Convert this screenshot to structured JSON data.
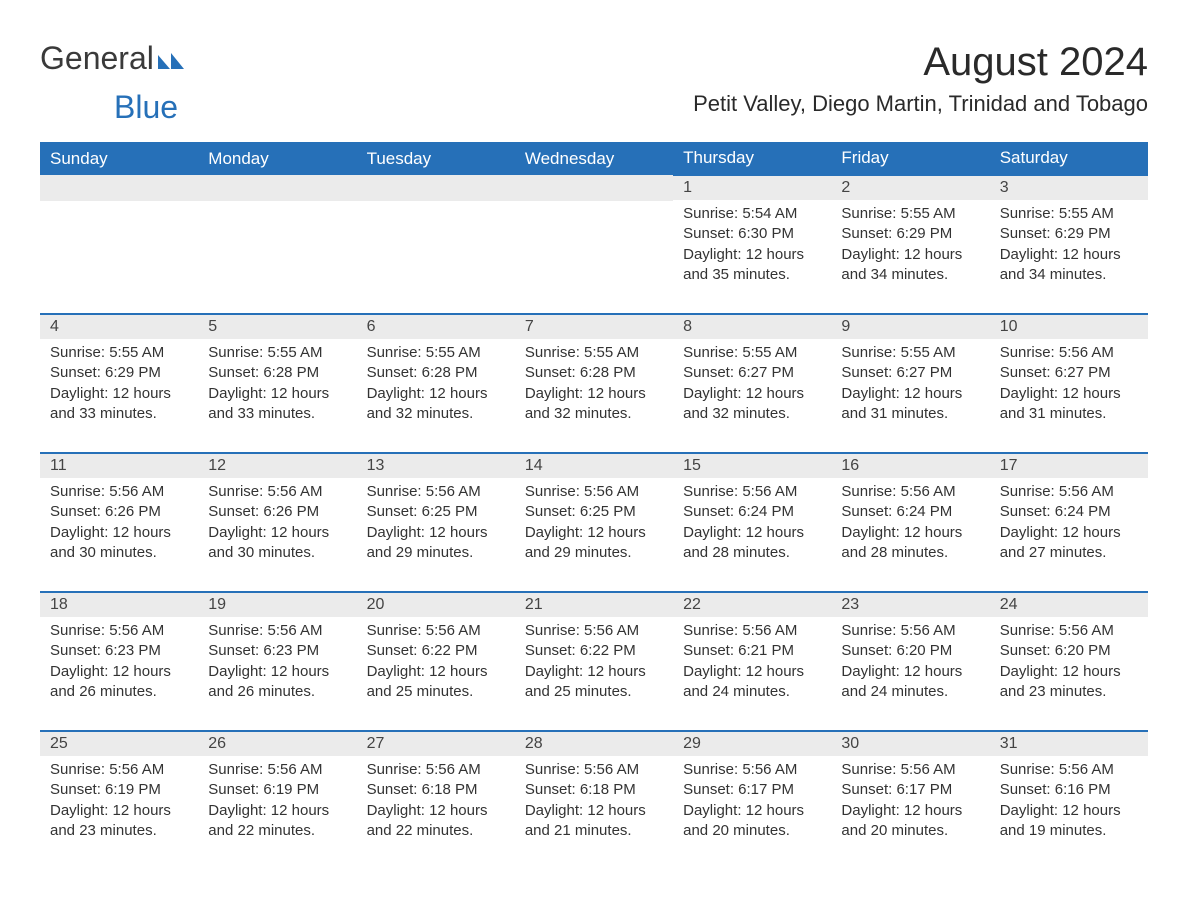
{
  "logo": {
    "text_general": "General",
    "text_blue": "Blue",
    "icon_color": "#2670b8"
  },
  "header": {
    "month_title": "August 2024",
    "location": "Petit Valley, Diego Martin, Trinidad and Tobago"
  },
  "colors": {
    "header_bg": "#2670b8",
    "header_text": "#ffffff",
    "day_bg": "#ebebeb",
    "border": "#2670b8",
    "text": "#333333"
  },
  "weekdays": [
    "Sunday",
    "Monday",
    "Tuesday",
    "Wednesday",
    "Thursday",
    "Friday",
    "Saturday"
  ],
  "weeks": [
    [
      {
        "empty": true
      },
      {
        "empty": true
      },
      {
        "empty": true
      },
      {
        "empty": true
      },
      {
        "day": "1",
        "sunrise": "Sunrise: 5:54 AM",
        "sunset": "Sunset: 6:30 PM",
        "daylight": "Daylight: 12 hours and 35 minutes."
      },
      {
        "day": "2",
        "sunrise": "Sunrise: 5:55 AM",
        "sunset": "Sunset: 6:29 PM",
        "daylight": "Daylight: 12 hours and 34 minutes."
      },
      {
        "day": "3",
        "sunrise": "Sunrise: 5:55 AM",
        "sunset": "Sunset: 6:29 PM",
        "daylight": "Daylight: 12 hours and 34 minutes."
      }
    ],
    [
      {
        "day": "4",
        "sunrise": "Sunrise: 5:55 AM",
        "sunset": "Sunset: 6:29 PM",
        "daylight": "Daylight: 12 hours and 33 minutes."
      },
      {
        "day": "5",
        "sunrise": "Sunrise: 5:55 AM",
        "sunset": "Sunset: 6:28 PM",
        "daylight": "Daylight: 12 hours and 33 minutes."
      },
      {
        "day": "6",
        "sunrise": "Sunrise: 5:55 AM",
        "sunset": "Sunset: 6:28 PM",
        "daylight": "Daylight: 12 hours and 32 minutes."
      },
      {
        "day": "7",
        "sunrise": "Sunrise: 5:55 AM",
        "sunset": "Sunset: 6:28 PM",
        "daylight": "Daylight: 12 hours and 32 minutes."
      },
      {
        "day": "8",
        "sunrise": "Sunrise: 5:55 AM",
        "sunset": "Sunset: 6:27 PM",
        "daylight": "Daylight: 12 hours and 32 minutes."
      },
      {
        "day": "9",
        "sunrise": "Sunrise: 5:55 AM",
        "sunset": "Sunset: 6:27 PM",
        "daylight": "Daylight: 12 hours and 31 minutes."
      },
      {
        "day": "10",
        "sunrise": "Sunrise: 5:56 AM",
        "sunset": "Sunset: 6:27 PM",
        "daylight": "Daylight: 12 hours and 31 minutes."
      }
    ],
    [
      {
        "day": "11",
        "sunrise": "Sunrise: 5:56 AM",
        "sunset": "Sunset: 6:26 PM",
        "daylight": "Daylight: 12 hours and 30 minutes."
      },
      {
        "day": "12",
        "sunrise": "Sunrise: 5:56 AM",
        "sunset": "Sunset: 6:26 PM",
        "daylight": "Daylight: 12 hours and 30 minutes."
      },
      {
        "day": "13",
        "sunrise": "Sunrise: 5:56 AM",
        "sunset": "Sunset: 6:25 PM",
        "daylight": "Daylight: 12 hours and 29 minutes."
      },
      {
        "day": "14",
        "sunrise": "Sunrise: 5:56 AM",
        "sunset": "Sunset: 6:25 PM",
        "daylight": "Daylight: 12 hours and 29 minutes."
      },
      {
        "day": "15",
        "sunrise": "Sunrise: 5:56 AM",
        "sunset": "Sunset: 6:24 PM",
        "daylight": "Daylight: 12 hours and 28 minutes."
      },
      {
        "day": "16",
        "sunrise": "Sunrise: 5:56 AM",
        "sunset": "Sunset: 6:24 PM",
        "daylight": "Daylight: 12 hours and 28 minutes."
      },
      {
        "day": "17",
        "sunrise": "Sunrise: 5:56 AM",
        "sunset": "Sunset: 6:24 PM",
        "daylight": "Daylight: 12 hours and 27 minutes."
      }
    ],
    [
      {
        "day": "18",
        "sunrise": "Sunrise: 5:56 AM",
        "sunset": "Sunset: 6:23 PM",
        "daylight": "Daylight: 12 hours and 26 minutes."
      },
      {
        "day": "19",
        "sunrise": "Sunrise: 5:56 AM",
        "sunset": "Sunset: 6:23 PM",
        "daylight": "Daylight: 12 hours and 26 minutes."
      },
      {
        "day": "20",
        "sunrise": "Sunrise: 5:56 AM",
        "sunset": "Sunset: 6:22 PM",
        "daylight": "Daylight: 12 hours and 25 minutes."
      },
      {
        "day": "21",
        "sunrise": "Sunrise: 5:56 AM",
        "sunset": "Sunset: 6:22 PM",
        "daylight": "Daylight: 12 hours and 25 minutes."
      },
      {
        "day": "22",
        "sunrise": "Sunrise: 5:56 AM",
        "sunset": "Sunset: 6:21 PM",
        "daylight": "Daylight: 12 hours and 24 minutes."
      },
      {
        "day": "23",
        "sunrise": "Sunrise: 5:56 AM",
        "sunset": "Sunset: 6:20 PM",
        "daylight": "Daylight: 12 hours and 24 minutes."
      },
      {
        "day": "24",
        "sunrise": "Sunrise: 5:56 AM",
        "sunset": "Sunset: 6:20 PM",
        "daylight": "Daylight: 12 hours and 23 minutes."
      }
    ],
    [
      {
        "day": "25",
        "sunrise": "Sunrise: 5:56 AM",
        "sunset": "Sunset: 6:19 PM",
        "daylight": "Daylight: 12 hours and 23 minutes."
      },
      {
        "day": "26",
        "sunrise": "Sunrise: 5:56 AM",
        "sunset": "Sunset: 6:19 PM",
        "daylight": "Daylight: 12 hours and 22 minutes."
      },
      {
        "day": "27",
        "sunrise": "Sunrise: 5:56 AM",
        "sunset": "Sunset: 6:18 PM",
        "daylight": "Daylight: 12 hours and 22 minutes."
      },
      {
        "day": "28",
        "sunrise": "Sunrise: 5:56 AM",
        "sunset": "Sunset: 6:18 PM",
        "daylight": "Daylight: 12 hours and 21 minutes."
      },
      {
        "day": "29",
        "sunrise": "Sunrise: 5:56 AM",
        "sunset": "Sunset: 6:17 PM",
        "daylight": "Daylight: 12 hours and 20 minutes."
      },
      {
        "day": "30",
        "sunrise": "Sunrise: 5:56 AM",
        "sunset": "Sunset: 6:17 PM",
        "daylight": "Daylight: 12 hours and 20 minutes."
      },
      {
        "day": "31",
        "sunrise": "Sunrise: 5:56 AM",
        "sunset": "Sunset: 6:16 PM",
        "daylight": "Daylight: 12 hours and 19 minutes."
      }
    ]
  ]
}
